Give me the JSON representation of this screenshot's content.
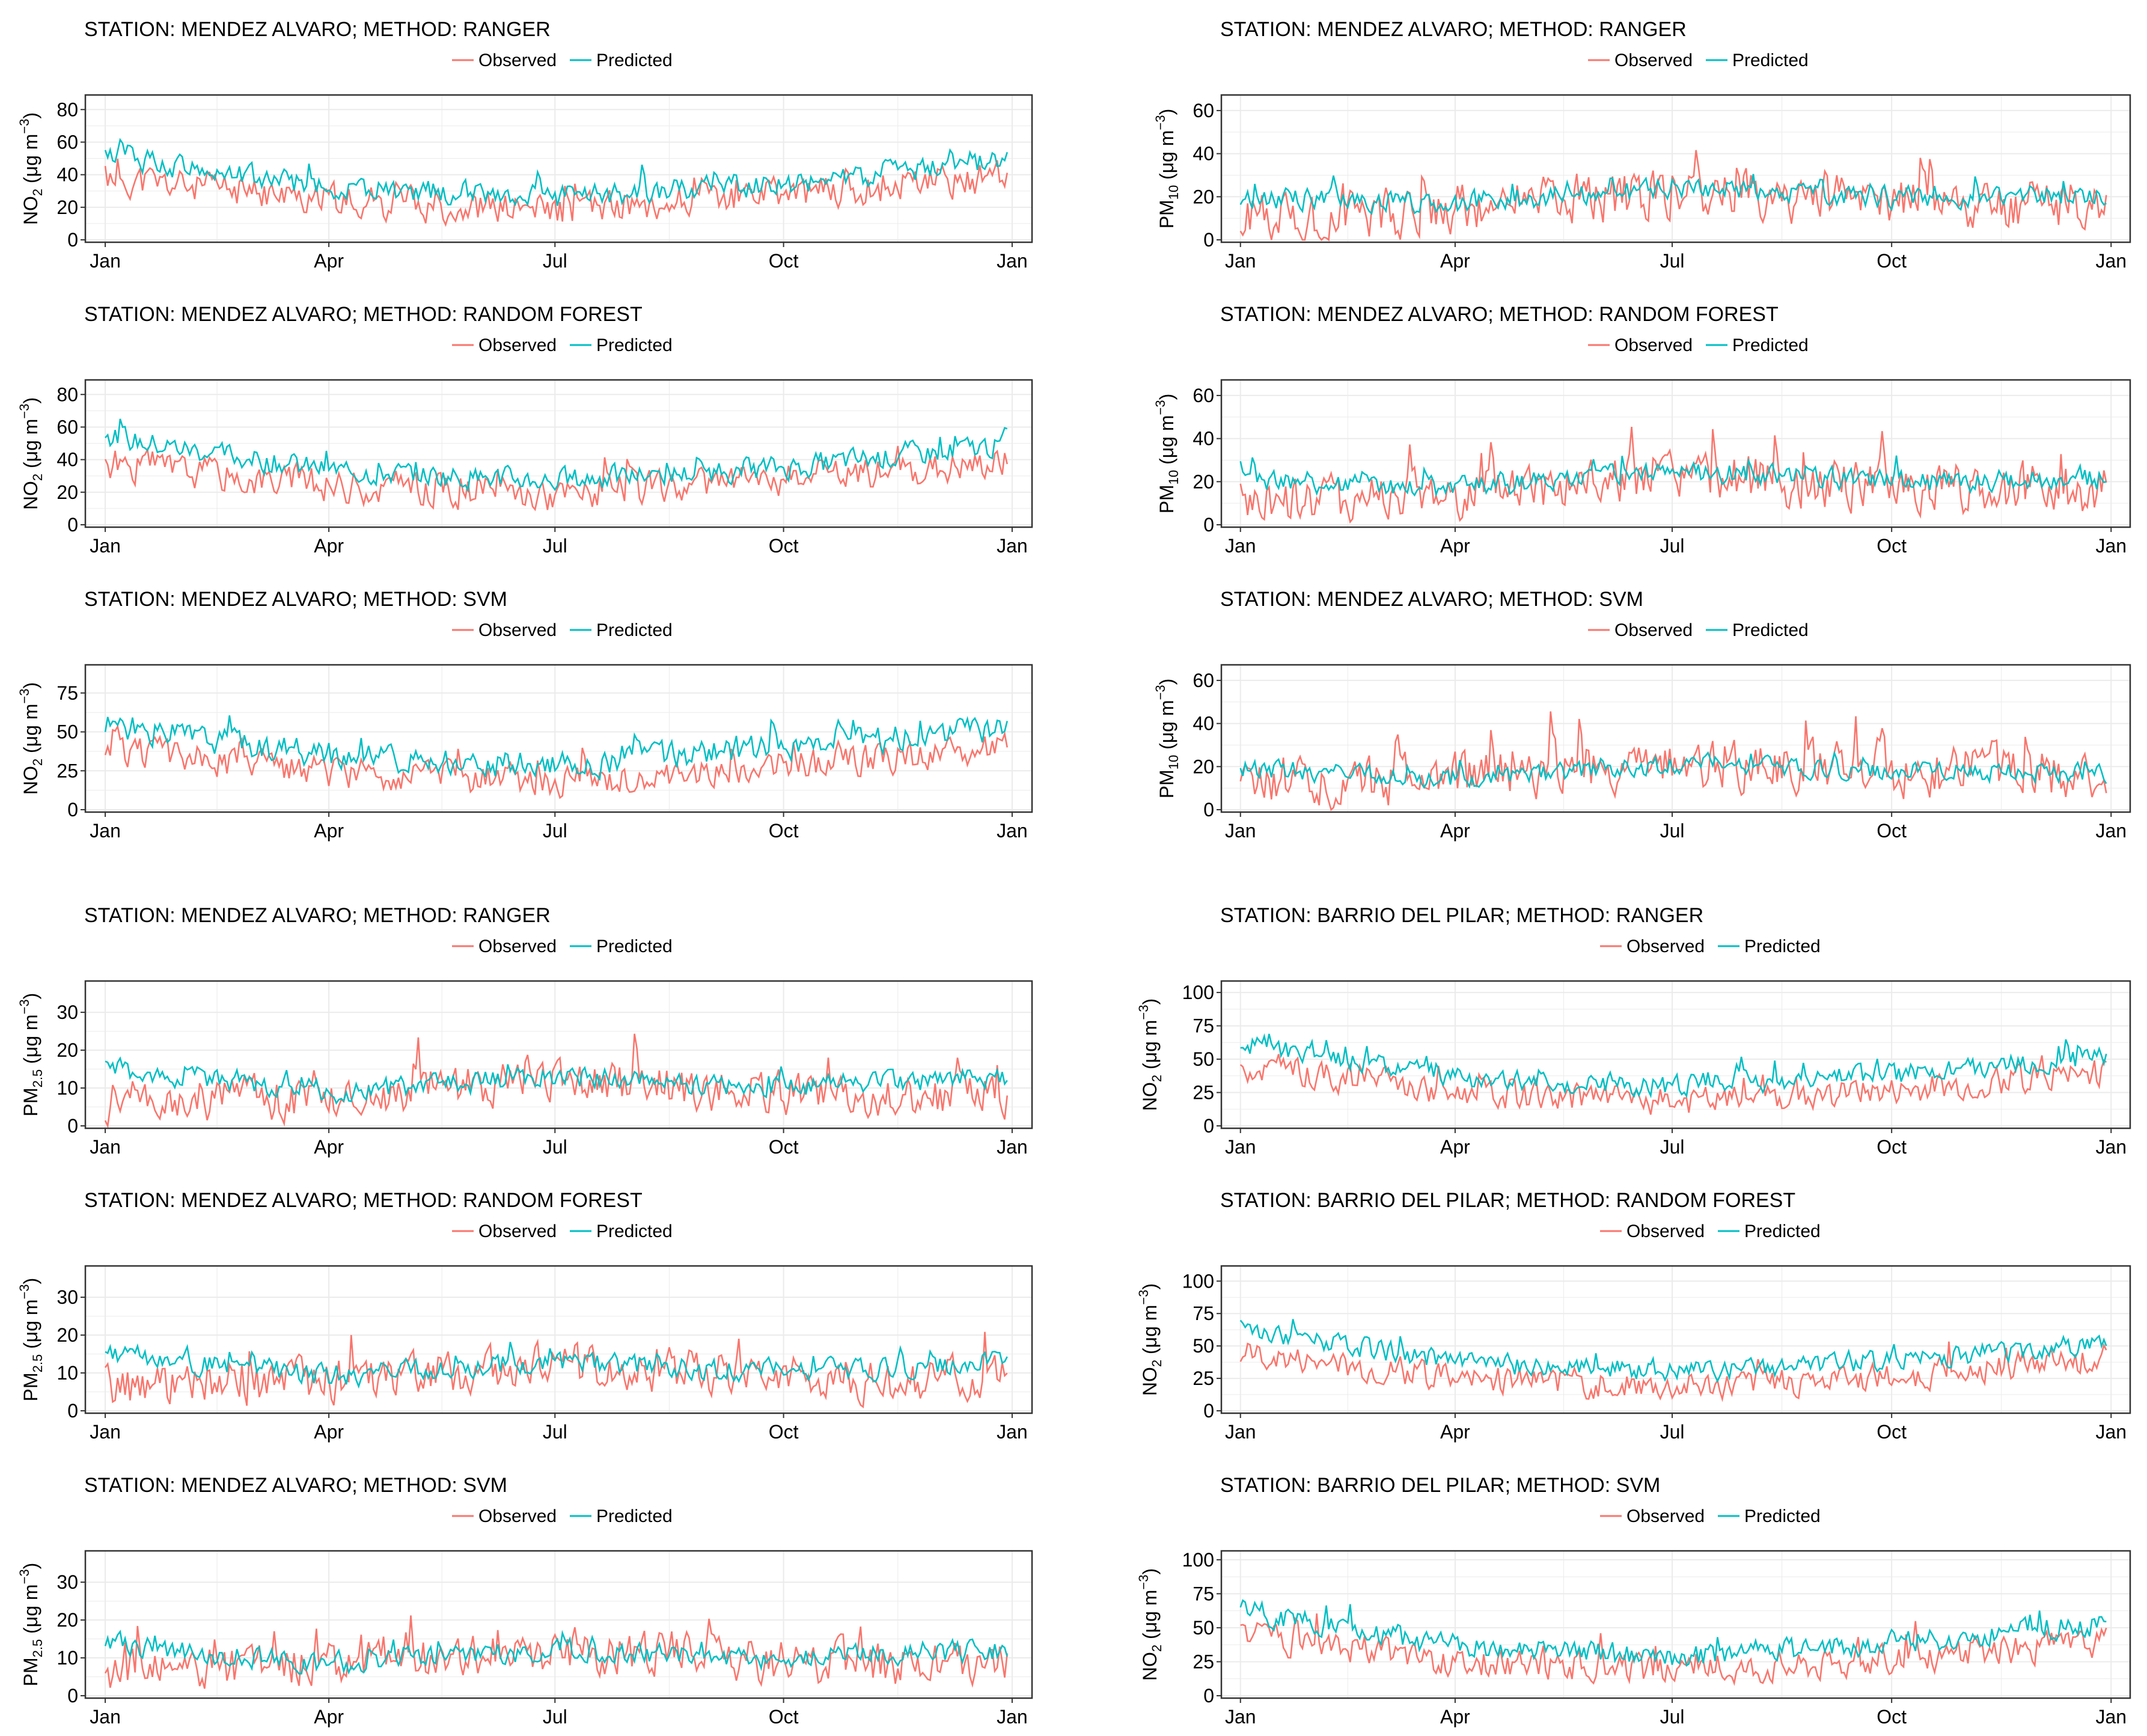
{
  "colors": {
    "observed": "#F8766D",
    "predicted": "#00BFC4",
    "panel_border": "#333333",
    "grid": "#EBEBEB",
    "text": "#000000"
  },
  "legend": {
    "observed": "Observed",
    "predicted": "Predicted"
  },
  "x_axis": {
    "ticks": [
      {
        "label": "Jan",
        "day": 0
      },
      {
        "label": "Apr",
        "day": 90
      },
      {
        "label": "Jul",
        "day": 181
      },
      {
        "label": "Oct",
        "day": 273
      },
      {
        "label": "Jan",
        "day": 365
      }
    ],
    "range_days": [
      -8,
      373
    ]
  },
  "chart_data": [
    {
      "type": "line",
      "title": "STATION: MENDEZ ALVARO; METHOD: RANGER",
      "ylabel_main": "NO",
      "ylabel_sub": "2",
      "ylabel_unit": " (μg m",
      "ylabel_sup": "−3",
      "ylabel_close": ")",
      "ylim": [
        0,
        86
      ],
      "yticks": [
        0,
        20,
        40,
        60,
        80
      ],
      "obs_profile": {
        "base": [
          38,
          24,
          18,
          28,
          38
        ],
        "amp": 14,
        "seed": 11
      },
      "pred_profile": {
        "base": [
          52,
          32,
          26,
          34,
          48
        ],
        "amp": 10,
        "seed": 12
      },
      "series": [
        {
          "name": "Observed"
        },
        {
          "name": "Predicted"
        }
      ]
    },
    {
      "type": "line",
      "title": "STATION: MENDEZ ALVARO; METHOD: RANGER",
      "ylabel_main": "PM",
      "ylabel_sub": "10",
      "ylabel_unit": " (μg m",
      "ylabel_sup": "−3",
      "ylabel_close": ")",
      "ylim": [
        0,
        65
      ],
      "yticks": [
        0,
        20,
        40,
        60
      ],
      "obs_profile": {
        "base": [
          9,
          15,
          22,
          18,
          16
        ],
        "amp": 16,
        "seed": 21
      },
      "pred_profile": {
        "base": [
          20,
          17,
          24,
          20,
          20
        ],
        "amp": 7,
        "seed": 22
      },
      "series": [
        {
          "name": "Observed"
        },
        {
          "name": "Predicted"
        }
      ]
    },
    {
      "type": "line",
      "title": "STATION: MENDEZ ALVARO; METHOD: RANDOM FOREST",
      "ylabel_main": "NO",
      "ylabel_sub": "2",
      "ylabel_unit": " (μg m",
      "ylabel_sup": "−3",
      "ylabel_close": ")",
      "ylim": [
        0,
        86
      ],
      "yticks": [
        0,
        20,
        40,
        60,
        80
      ],
      "obs_profile": {
        "base": [
          38,
          24,
          18,
          28,
          38
        ],
        "amp": 14,
        "seed": 31
      },
      "pred_profile": {
        "base": [
          54,
          33,
          27,
          35,
          49
        ],
        "amp": 10,
        "seed": 32
      },
      "series": [
        {
          "name": "Observed"
        },
        {
          "name": "Predicted"
        }
      ]
    },
    {
      "type": "line",
      "title": "STATION: MENDEZ ALVARO; METHOD: RANDOM FOREST",
      "ylabel_main": "PM",
      "ylabel_sub": "10",
      "ylabel_unit": " (μg m",
      "ylabel_sup": "−3",
      "ylabel_close": ")",
      "ylim": [
        0,
        65
      ],
      "yticks": [
        0,
        20,
        40,
        60
      ],
      "obs_profile": {
        "base": [
          9,
          15,
          22,
          18,
          16
        ],
        "amp": 16,
        "seed": 41
      },
      "pred_profile": {
        "base": [
          21,
          17,
          25,
          20,
          21
        ],
        "amp": 7,
        "seed": 42
      },
      "series": [
        {
          "name": "Observed"
        },
        {
          "name": "Predicted"
        }
      ]
    },
    {
      "type": "line",
      "title": "STATION: MENDEZ ALVARO; METHOD: SVM",
      "ylabel_main": "NO",
      "ylabel_sub": "2",
      "ylabel_unit": " (μg m",
      "ylabel_sup": "−3",
      "ylabel_close": ")",
      "ylim": [
        0,
        90
      ],
      "yticks": [
        0,
        25,
        50,
        75
      ],
      "obs_profile": {
        "base": [
          38,
          24,
          18,
          28,
          38
        ],
        "amp": 14,
        "seed": 51
      },
      "pred_profile": {
        "base": [
          55,
          34,
          28,
          40,
          52
        ],
        "amp": 12,
        "seed": 52
      },
      "series": [
        {
          "name": "Observed"
        },
        {
          "name": "Predicted"
        }
      ]
    },
    {
      "type": "line",
      "title": "STATION: MENDEZ ALVARO; METHOD: SVM",
      "ylabel_main": "PM",
      "ylabel_sub": "10",
      "ylabel_unit": " (μg m",
      "ylabel_sup": "−3",
      "ylabel_close": ")",
      "ylim": [
        0,
        65
      ],
      "yticks": [
        0,
        20,
        40,
        60
      ],
      "obs_profile": {
        "base": [
          9,
          15,
          22,
          18,
          16
        ],
        "amp": 16,
        "seed": 61
      },
      "pred_profile": {
        "base": [
          19,
          14,
          21,
          18,
          17
        ],
        "amp": 6,
        "seed": 62
      },
      "series": [
        {
          "name": "Observed"
        },
        {
          "name": "Predicted"
        }
      ]
    },
    {
      "type": "line",
      "title": "STATION: MENDEZ ALVARO; METHOD: RANGER",
      "ylabel_main": "PM",
      "ylabel_sub": "2.5",
      "ylabel_unit": " (μg m",
      "ylabel_sup": "−3",
      "ylabel_close": ")",
      "ylim": [
        0,
        37
      ],
      "yticks": [
        0,
        10,
        20,
        30
      ],
      "obs_profile": {
        "base": [
          6,
          8,
          12,
          9,
          8
        ],
        "amp": 8,
        "seed": 71
      },
      "pred_profile": {
        "base": [
          15,
          9,
          13,
          10,
          13
        ],
        "amp": 4,
        "seed": 72
      },
      "series": [
        {
          "name": "Observed"
        },
        {
          "name": "Predicted"
        }
      ]
    },
    {
      "type": "line",
      "title": "STATION: BARRIO DEL PILAR; METHOD: RANGER",
      "ylabel_main": "NO",
      "ylabel_sub": "2",
      "ylabel_unit": " (μg m",
      "ylabel_sup": "−3",
      "ylabel_close": ")",
      "ylim": [
        0,
        105
      ],
      "yticks": [
        0,
        25,
        50,
        75,
        100
      ],
      "obs_profile": {
        "base": [
          45,
          25,
          18,
          26,
          40
        ],
        "amp": 15,
        "seed": 81
      },
      "pred_profile": {
        "base": [
          62,
          36,
          30,
          38,
          52
        ],
        "amp": 11,
        "seed": 82
      },
      "series": [
        {
          "name": "Observed"
        },
        {
          "name": "Predicted"
        }
      ]
    },
    {
      "type": "line",
      "title": "STATION: MENDEZ ALVARO; METHOD: RANDOM FOREST",
      "ylabel_main": "PM",
      "ylabel_sub": "2.5",
      "ylabel_unit": " (μg m",
      "ylabel_sup": "−3",
      "ylabel_close": ")",
      "ylim": [
        0,
        37
      ],
      "yticks": [
        0,
        10,
        20,
        30
      ],
      "obs_profile": {
        "base": [
          6,
          8,
          12,
          9,
          8
        ],
        "amp": 8,
        "seed": 91
      },
      "pred_profile": {
        "base": [
          15,
          9,
          13,
          10,
          13
        ],
        "amp": 4,
        "seed": 92
      },
      "series": [
        {
          "name": "Observed"
        },
        {
          "name": "Predicted"
        }
      ]
    },
    {
      "type": "line",
      "title": "STATION: BARRIO DEL PILAR; METHOD: RANDOM FOREST",
      "ylabel_main": "NO",
      "ylabel_sub": "2",
      "ylabel_unit": " (μg m",
      "ylabel_sup": "−3",
      "ylabel_close": ")",
      "ylim": [
        0,
        108
      ],
      "yticks": [
        0,
        25,
        50,
        75,
        100
      ],
      "obs_profile": {
        "base": [
          45,
          25,
          18,
          26,
          40
        ],
        "amp": 15,
        "seed": 101
      },
      "pred_profile": {
        "base": [
          63,
          37,
          30,
          38,
          53
        ],
        "amp": 11,
        "seed": 102
      },
      "series": [
        {
          "name": "Observed"
        },
        {
          "name": "Predicted"
        }
      ]
    },
    {
      "type": "line",
      "title": "STATION: MENDEZ ALVARO; METHOD: SVM",
      "ylabel_main": "PM",
      "ylabel_sub": "2.5",
      "ylabel_unit": " (μg m",
      "ylabel_sup": "−3",
      "ylabel_close": ")",
      "ylim": [
        0,
        37
      ],
      "yticks": [
        0,
        10,
        20,
        30
      ],
      "obs_profile": {
        "base": [
          6,
          8,
          12,
          9,
          8
        ],
        "amp": 8,
        "seed": 111
      },
      "pred_profile": {
        "base": [
          14,
          8,
          12,
          10,
          12
        ],
        "amp": 4,
        "seed": 112
      },
      "series": [
        {
          "name": "Observed"
        },
        {
          "name": "Predicted"
        }
      ]
    },
    {
      "type": "line",
      "title": "STATION: BARRIO DEL PILAR; METHOD: SVM",
      "ylabel_main": "NO",
      "ylabel_sub": "2",
      "ylabel_unit": " (μg m",
      "ylabel_sup": "−3",
      "ylabel_close": ")",
      "ylim": [
        0,
        103
      ],
      "yticks": [
        0,
        25,
        50,
        75,
        100
      ],
      "obs_profile": {
        "base": [
          45,
          25,
          18,
          26,
          40
        ],
        "amp": 15,
        "seed": 121
      },
      "pred_profile": {
        "base": [
          62,
          36,
          28,
          38,
          54
        ],
        "amp": 12,
        "seed": 122
      },
      "series": [
        {
          "name": "Observed"
        },
        {
          "name": "Predicted"
        }
      ]
    }
  ]
}
